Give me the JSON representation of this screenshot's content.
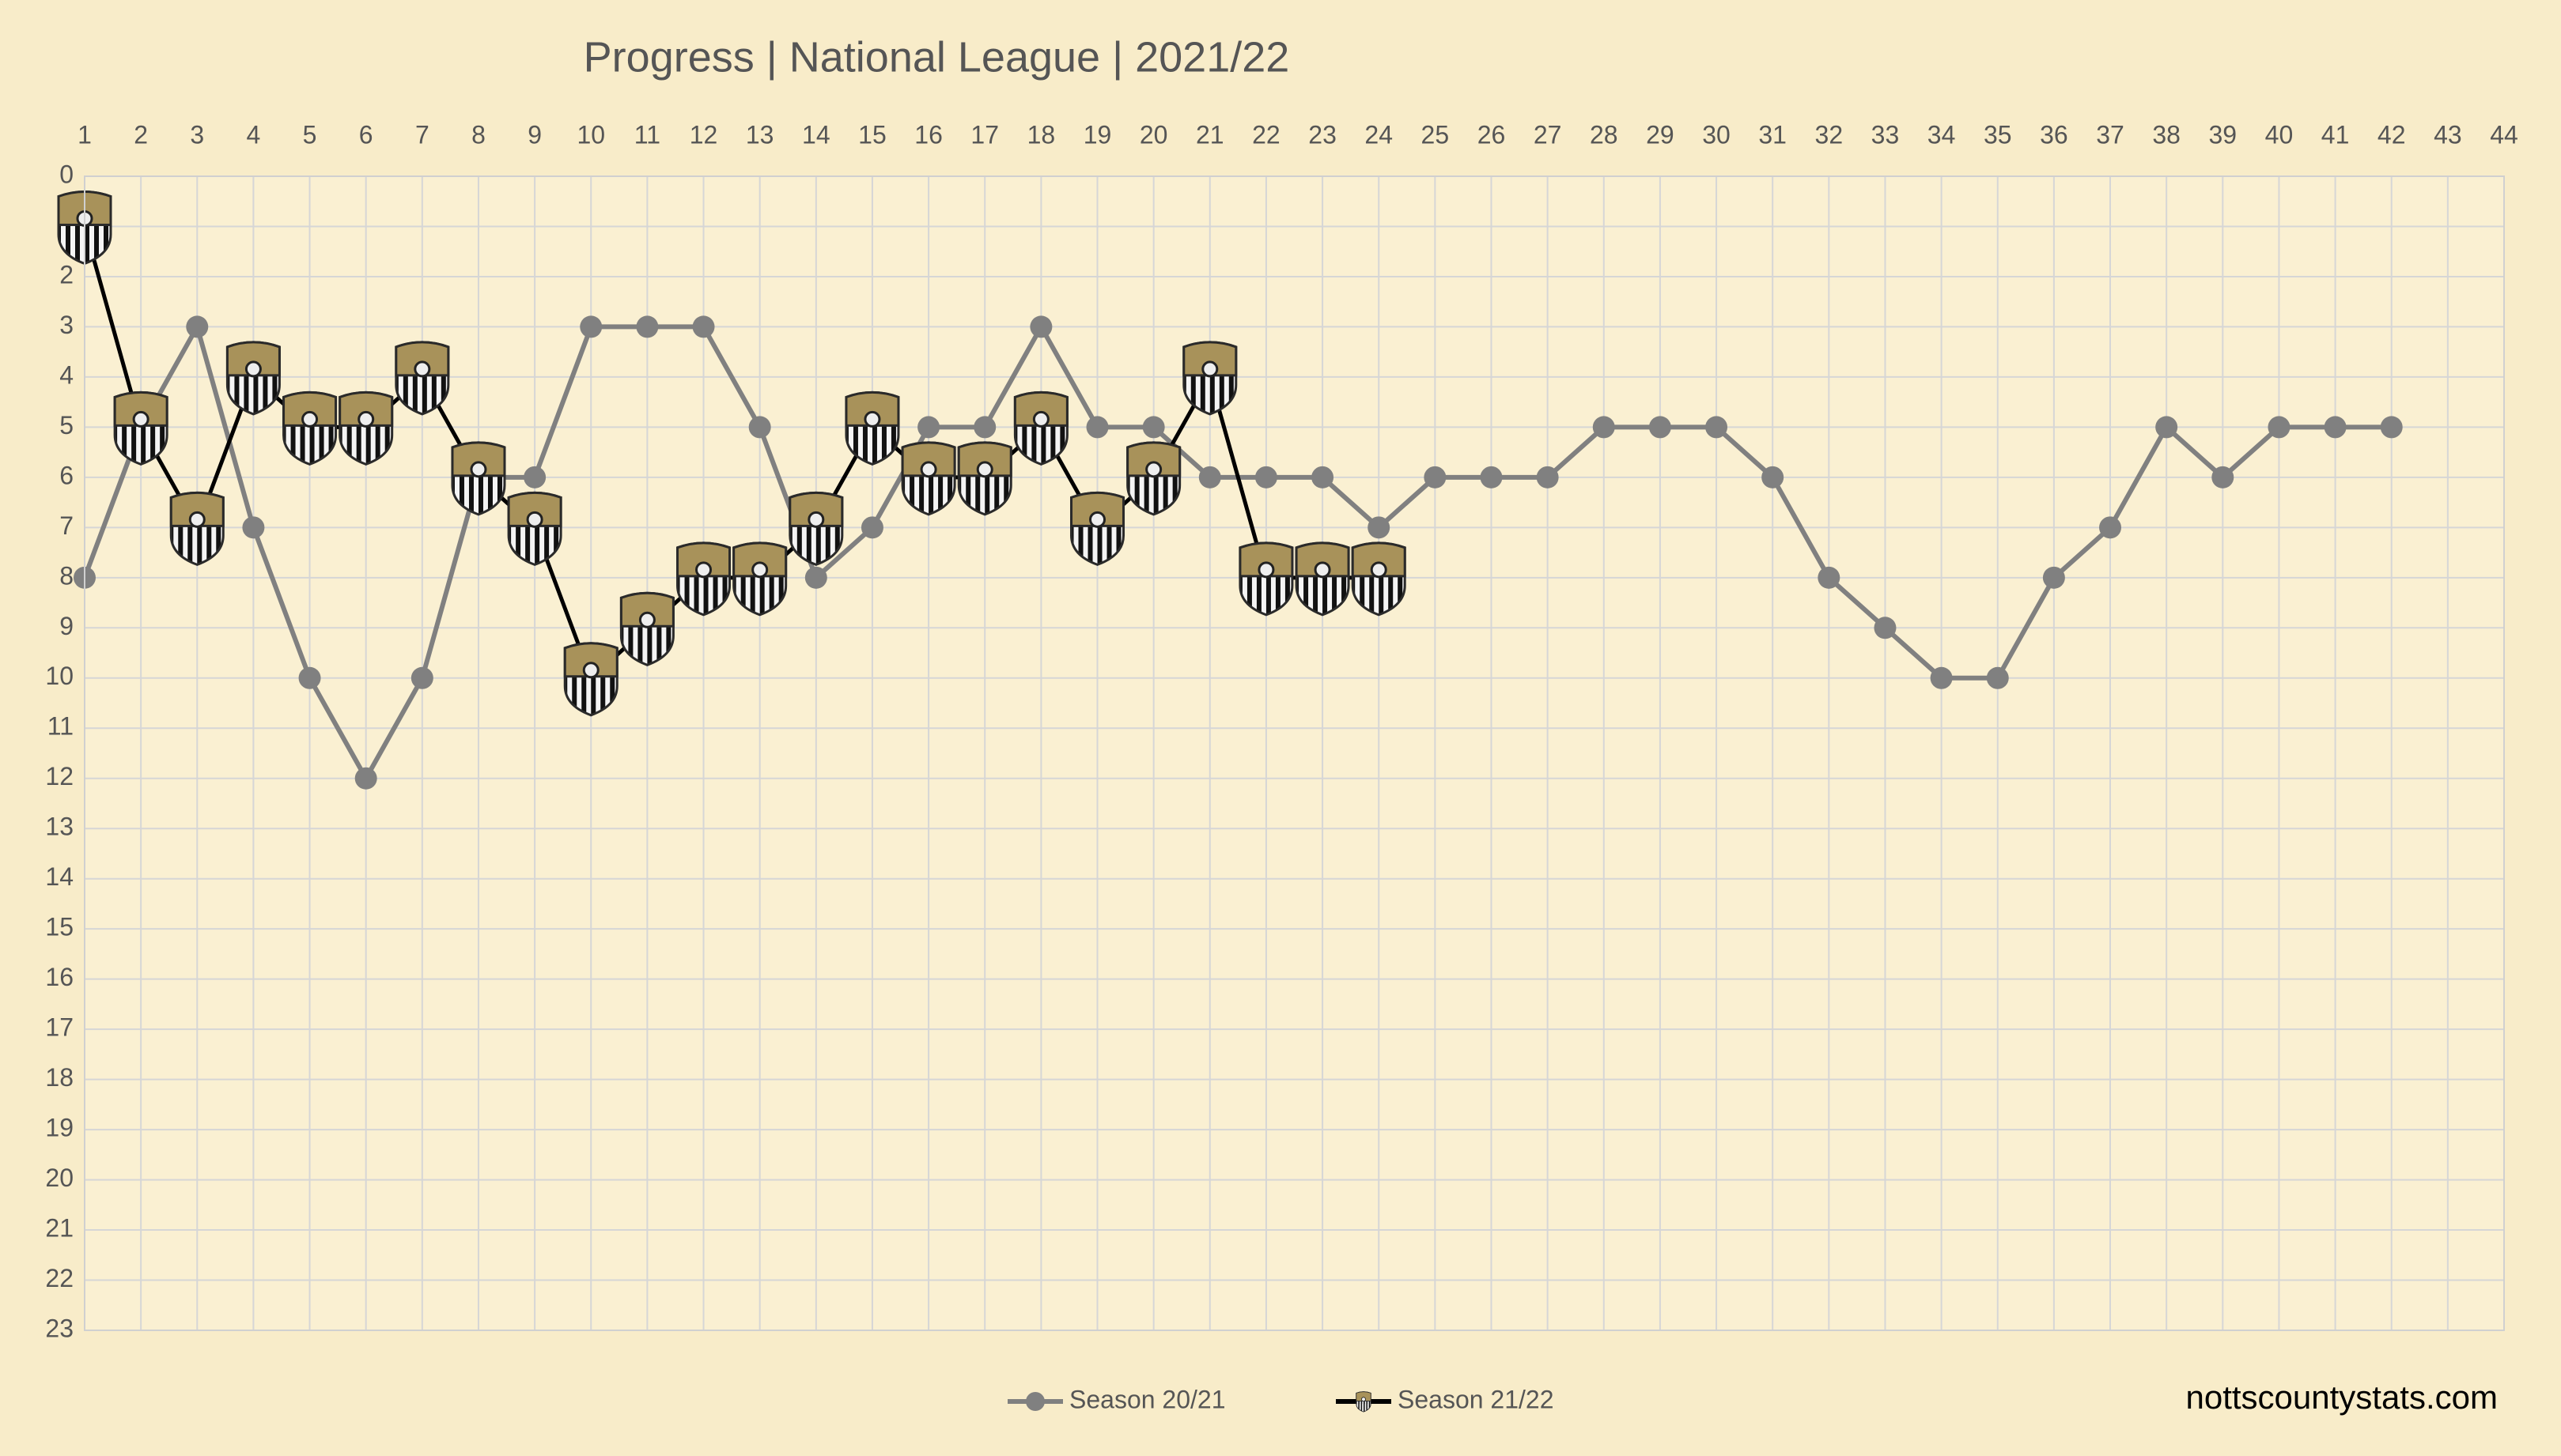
{
  "chart_data": {
    "type": "line",
    "title": "Progress | National League | 2021/22",
    "credit": "nottscountystats.com",
    "xlim": [
      1,
      44
    ],
    "xticks": [
      1,
      2,
      3,
      4,
      5,
      6,
      7,
      8,
      9,
      10,
      11,
      12,
      13,
      14,
      15,
      16,
      17,
      18,
      19,
      20,
      21,
      22,
      23,
      24,
      25,
      26,
      27,
      28,
      29,
      30,
      31,
      32,
      33,
      34,
      35,
      36,
      37,
      38,
      39,
      40,
      41,
      42,
      43,
      44
    ],
    "x_axis_position": "top",
    "ylim": [
      0,
      23
    ],
    "y_inverted": true,
    "yticks": [
      0,
      1,
      2,
      3,
      4,
      5,
      6,
      7,
      8,
      9,
      10,
      11,
      12,
      13,
      14,
      15,
      16,
      17,
      18,
      19,
      20,
      21,
      22,
      23
    ],
    "grid": true,
    "legend_position": "bottom",
    "series": [
      {
        "name": "Season 20/21",
        "color": "#808080",
        "marker": "circle",
        "x": [
          1,
          2,
          3,
          4,
          5,
          6,
          7,
          8,
          9,
          10,
          11,
          12,
          13,
          14,
          15,
          16,
          17,
          18,
          19,
          20,
          21,
          22,
          23,
          24,
          25,
          26,
          27,
          28,
          29,
          30,
          31,
          32,
          33,
          34,
          35,
          36,
          37,
          38,
          39,
          40,
          41,
          42
        ],
        "values": [
          8,
          5,
          3,
          7,
          10,
          12,
          10,
          6,
          6,
          3,
          3,
          3,
          5,
          8,
          7,
          5,
          5,
          3,
          5,
          5,
          6,
          6,
          6,
          7,
          6,
          6,
          6,
          5,
          5,
          5,
          6,
          8,
          9,
          10,
          10,
          8,
          7,
          5,
          6,
          5,
          5,
          5
        ]
      },
      {
        "name": "Season 21/22",
        "color": "#000000",
        "marker": "badge",
        "x": [
          1,
          2,
          3,
          4,
          5,
          6,
          7,
          8,
          9,
          10,
          11,
          12,
          13,
          14,
          15,
          16,
          17,
          18,
          19,
          20,
          21,
          22,
          23,
          24
        ],
        "values": [
          1,
          5,
          7,
          4,
          5,
          5,
          4,
          6,
          7,
          10,
          9,
          8,
          8,
          7,
          5,
          6,
          6,
          5,
          7,
          6,
          4,
          8,
          8,
          8
        ]
      }
    ]
  }
}
